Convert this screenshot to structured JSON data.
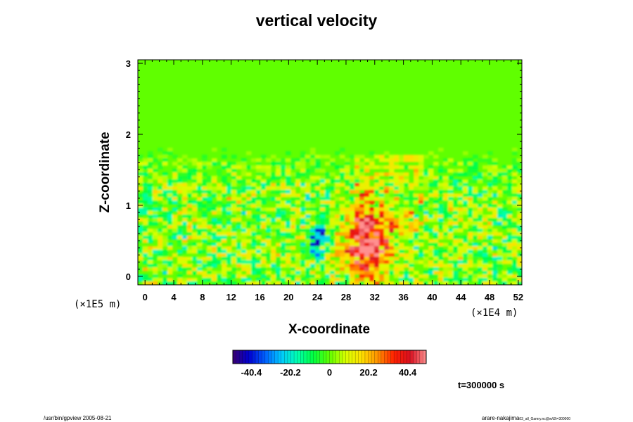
{
  "chart_data": {
    "type": "heatmap",
    "title": "vertical velocity",
    "xlabel": "X-coordinate",
    "ylabel": "Z-coordinate",
    "x_ticks": [
      "0",
      "4",
      "8",
      "12",
      "16",
      "20",
      "24",
      "28",
      "32",
      "36",
      "40",
      "44",
      "48",
      "52"
    ],
    "y_ticks": [
      "0",
      "1",
      "2",
      "3"
    ],
    "xlim": [
      -1,
      52.5
    ],
    "ylim": [
      -0.12,
      3.05
    ],
    "x_unit": "(×1E4 m)",
    "y_unit": "(×1E5 m)",
    "colorbar": {
      "min": -50,
      "max": 50,
      "ticks": [
        "-40.4",
        "-20.2",
        "0",
        "20.2",
        "40.4"
      ],
      "tick_values": [
        -40.4,
        -20.2,
        0,
        20.2,
        40.4
      ],
      "colors": [
        "#3a0070",
        "#0000d0",
        "#0060ff",
        "#00c8ff",
        "#00ffb0",
        "#00ff40",
        "#60ff00",
        "#d8ff00",
        "#ffe000",
        "#ff9000",
        "#ff2000",
        "#d81020",
        "#ff9090"
      ]
    },
    "annotation_time": "t=300000 s",
    "features": [
      {
        "name": "updraft core",
        "x": 31,
        "z": 0.45,
        "w": 55,
        "intensity": "strong positive"
      },
      {
        "name": "downdraft",
        "x": 24.5,
        "z": 0.6,
        "w": -35,
        "intensity": "negative"
      },
      {
        "name": "downdraft",
        "x": 23.5,
        "z": 0.45,
        "w": -30,
        "intensity": "negative"
      }
    ]
  },
  "footer": {
    "left": "/usr/bin/gpview 2005-08-21",
    "right_main": "arare-nakajima",
    "right_sub": "03_all_Gamry.nc@w/t2t=300000"
  }
}
